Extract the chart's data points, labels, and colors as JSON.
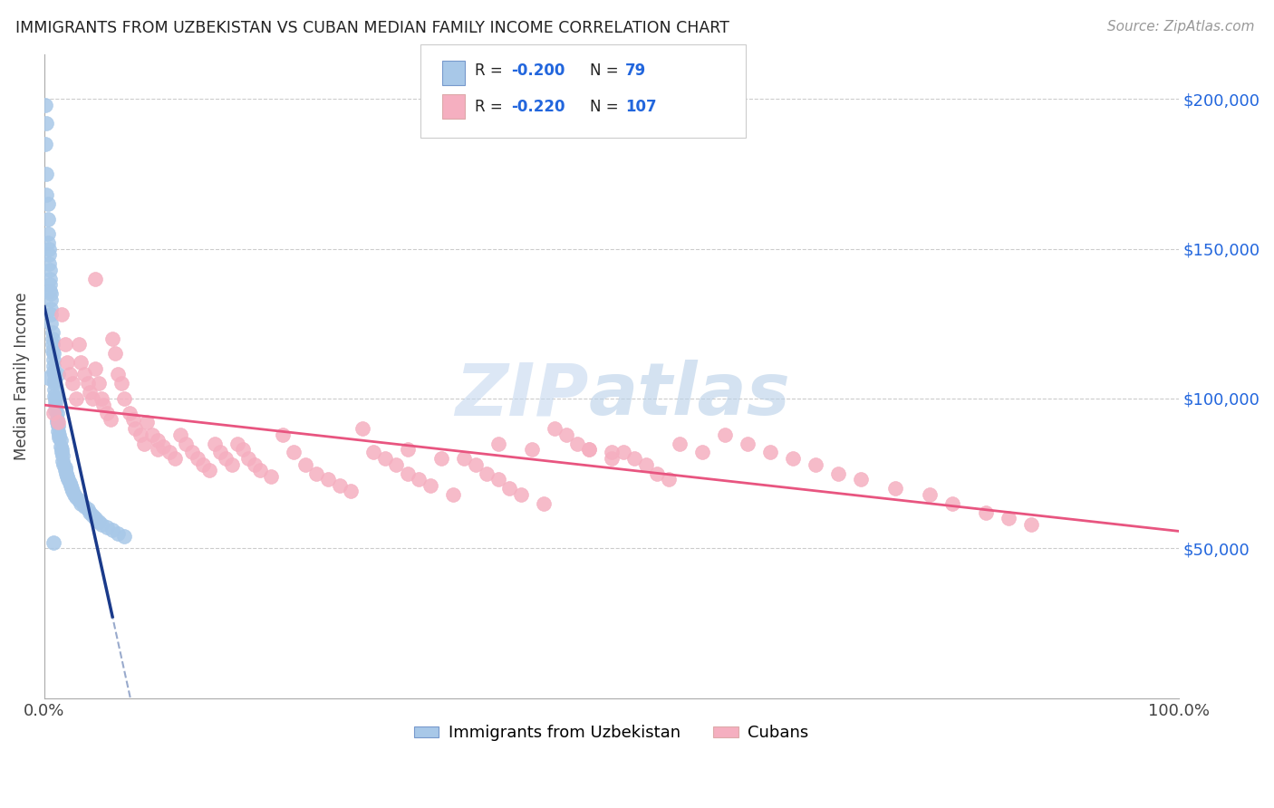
{
  "title": "IMMIGRANTS FROM UZBEKISTAN VS CUBAN MEDIAN FAMILY INCOME CORRELATION CHART",
  "source": "Source: ZipAtlas.com",
  "ylabel": "Median Family Income",
  "ytick_labels": [
    "$50,000",
    "$100,000",
    "$150,000",
    "$200,000"
  ],
  "ytick_values": [
    50000,
    100000,
    150000,
    200000
  ],
  "ylim": [
    0,
    215000
  ],
  "xlim": [
    0,
    1.0
  ],
  "color_uzbek": "#a8c8e8",
  "color_cuban": "#f5afc0",
  "line_uzbek_solid": "#1a3a8a",
  "line_uzbek_dashed": "#99aacc",
  "line_cuban": "#e85580",
  "watermark_zip": "ZIP",
  "watermark_atlas": "atlas",
  "uzbek_x": [
    0.001,
    0.001,
    0.002,
    0.002,
    0.002,
    0.003,
    0.003,
    0.003,
    0.003,
    0.004,
    0.004,
    0.004,
    0.005,
    0.005,
    0.005,
    0.005,
    0.006,
    0.006,
    0.006,
    0.006,
    0.006,
    0.007,
    0.007,
    0.007,
    0.007,
    0.008,
    0.008,
    0.008,
    0.008,
    0.009,
    0.009,
    0.009,
    0.009,
    0.009,
    0.01,
    0.01,
    0.01,
    0.01,
    0.011,
    0.011,
    0.011,
    0.012,
    0.012,
    0.013,
    0.013,
    0.014,
    0.014,
    0.015,
    0.015,
    0.016,
    0.016,
    0.017,
    0.018,
    0.018,
    0.019,
    0.02,
    0.021,
    0.022,
    0.023,
    0.024,
    0.025,
    0.026,
    0.028,
    0.03,
    0.032,
    0.035,
    0.038,
    0.04,
    0.042,
    0.045,
    0.048,
    0.05,
    0.055,
    0.06,
    0.065,
    0.07,
    0.003,
    0.008,
    0.012
  ],
  "uzbek_y": [
    198000,
    185000,
    192000,
    175000,
    168000,
    165000,
    160000,
    155000,
    152000,
    150000,
    148000,
    145000,
    143000,
    140000,
    138000,
    136000,
    135000,
    133000,
    130000,
    128000,
    125000,
    122000,
    120000,
    118000,
    116000,
    115000,
    113000,
    111000,
    109000,
    108000,
    106000,
    105000,
    103000,
    101000,
    100000,
    99000,
    98000,
    96000,
    95000,
    93000,
    92000,
    91000,
    89000,
    88000,
    87000,
    86000,
    84000,
    83000,
    82000,
    81000,
    79000,
    78000,
    77000,
    76000,
    75000,
    74000,
    73000,
    72000,
    71000,
    70000,
    69000,
    68000,
    67000,
    66000,
    65000,
    64000,
    63000,
    62000,
    61000,
    60000,
    59000,
    58000,
    57000,
    56000,
    55000,
    54000,
    107000,
    52000,
    108000
  ],
  "cuban_x": [
    0.008,
    0.012,
    0.015,
    0.018,
    0.02,
    0.022,
    0.025,
    0.028,
    0.03,
    0.032,
    0.035,
    0.038,
    0.04,
    0.042,
    0.045,
    0.048,
    0.05,
    0.052,
    0.055,
    0.058,
    0.06,
    0.062,
    0.065,
    0.068,
    0.07,
    0.075,
    0.078,
    0.08,
    0.085,
    0.088,
    0.09,
    0.095,
    0.1,
    0.105,
    0.11,
    0.115,
    0.12,
    0.125,
    0.13,
    0.135,
    0.14,
    0.145,
    0.15,
    0.155,
    0.16,
    0.165,
    0.17,
    0.175,
    0.18,
    0.185,
    0.19,
    0.2,
    0.21,
    0.22,
    0.23,
    0.24,
    0.25,
    0.26,
    0.27,
    0.28,
    0.29,
    0.3,
    0.31,
    0.32,
    0.33,
    0.34,
    0.36,
    0.37,
    0.38,
    0.39,
    0.4,
    0.41,
    0.42,
    0.44,
    0.45,
    0.46,
    0.47,
    0.48,
    0.5,
    0.51,
    0.52,
    0.53,
    0.54,
    0.55,
    0.56,
    0.58,
    0.6,
    0.62,
    0.64,
    0.66,
    0.68,
    0.7,
    0.72,
    0.75,
    0.78,
    0.8,
    0.83,
    0.85,
    0.87,
    0.32,
    0.35,
    0.48,
    0.5,
    0.4,
    0.43,
    0.045,
    0.1
  ],
  "cuban_y": [
    95000,
    92000,
    128000,
    118000,
    112000,
    108000,
    105000,
    100000,
    118000,
    112000,
    108000,
    105000,
    102000,
    100000,
    110000,
    105000,
    100000,
    98000,
    95000,
    93000,
    120000,
    115000,
    108000,
    105000,
    100000,
    95000,
    93000,
    90000,
    88000,
    85000,
    92000,
    88000,
    86000,
    84000,
    82000,
    80000,
    88000,
    85000,
    82000,
    80000,
    78000,
    76000,
    85000,
    82000,
    80000,
    78000,
    85000,
    83000,
    80000,
    78000,
    76000,
    74000,
    88000,
    82000,
    78000,
    75000,
    73000,
    71000,
    69000,
    90000,
    82000,
    80000,
    78000,
    75000,
    73000,
    71000,
    68000,
    80000,
    78000,
    75000,
    73000,
    70000,
    68000,
    65000,
    90000,
    88000,
    85000,
    83000,
    80000,
    82000,
    80000,
    78000,
    75000,
    73000,
    85000,
    82000,
    88000,
    85000,
    82000,
    80000,
    78000,
    75000,
    73000,
    70000,
    68000,
    65000,
    62000,
    60000,
    58000,
    83000,
    80000,
    83000,
    82000,
    85000,
    83000,
    140000,
    83000
  ]
}
